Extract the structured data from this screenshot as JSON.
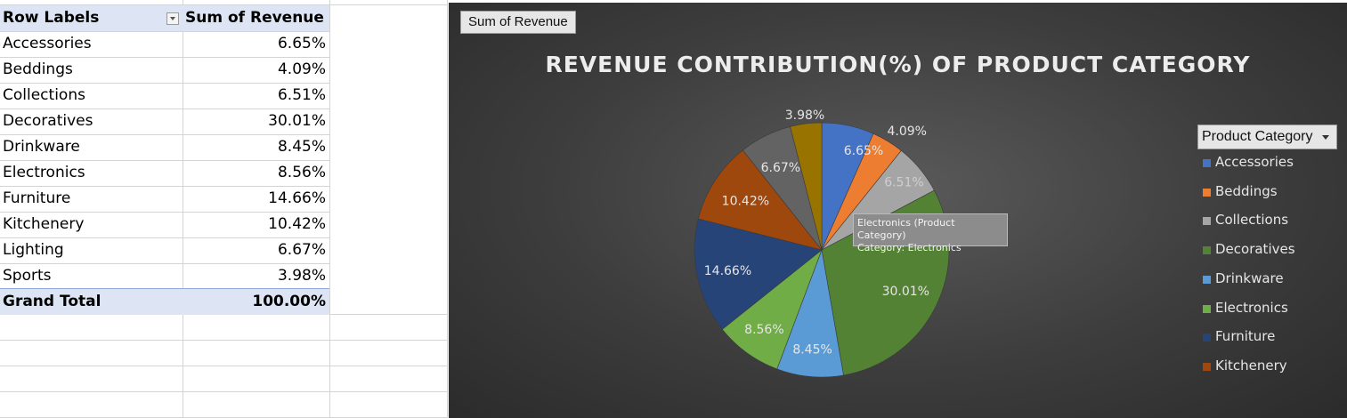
{
  "pivot": {
    "header_left": "Row Labels",
    "header_right": "Sum of Revenue",
    "rows": [
      {
        "label": "Accessories",
        "value": "6.65%"
      },
      {
        "label": "Beddings",
        "value": "4.09%"
      },
      {
        "label": "Collections",
        "value": "6.51%"
      },
      {
        "label": "Decoratives",
        "value": "30.01%"
      },
      {
        "label": "Drinkware",
        "value": "8.45%"
      },
      {
        "label": "Electronics",
        "value": "8.56%"
      },
      {
        "label": "Furniture",
        "value": "14.66%"
      },
      {
        "label": "Kitchenery",
        "value": "10.42%"
      },
      {
        "label": "Lighting",
        "value": "6.67%"
      },
      {
        "label": "Sports",
        "value": "3.98%"
      }
    ],
    "total_label": "Grand Total",
    "total_value": "100.00%"
  },
  "chart": {
    "field_button": "Sum of Revenue",
    "legend_header": "Product Category",
    "tooltip_line1": "Electronics (Product Category)",
    "tooltip_line2": "Category: Electronics"
  },
  "chart_data": {
    "type": "pie",
    "title": "REVENUE CONTRIBUTION(%) OF PRODUCT CATEGORY",
    "categories": [
      "Accessories",
      "Beddings",
      "Collections",
      "Decoratives",
      "Drinkware",
      "Electronics",
      "Furniture",
      "Kitchenery",
      "Lighting",
      "Sports"
    ],
    "values": [
      6.65,
      4.09,
      6.51,
      30.01,
      8.45,
      8.56,
      14.66,
      10.42,
      6.67,
      3.98
    ],
    "data_labels": [
      "6.65%",
      "4.09%",
      "6.51%",
      "30.01%",
      "8.45%",
      "8.56%",
      "14.66%",
      "10.42%",
      "6.67%",
      "3.98%"
    ],
    "colors": [
      "#4472c4",
      "#ed7d31",
      "#a5a5a5",
      "#548235",
      "#5b9bd5",
      "#70ad47",
      "#264478",
      "#9e480e",
      "#636363",
      "#997300"
    ],
    "legend_visible": [
      "Accessories",
      "Beddings",
      "Collections",
      "Decoratives",
      "Drinkware",
      "Electronics",
      "Furniture",
      "Kitchenery"
    ],
    "legend_placement": "right"
  }
}
